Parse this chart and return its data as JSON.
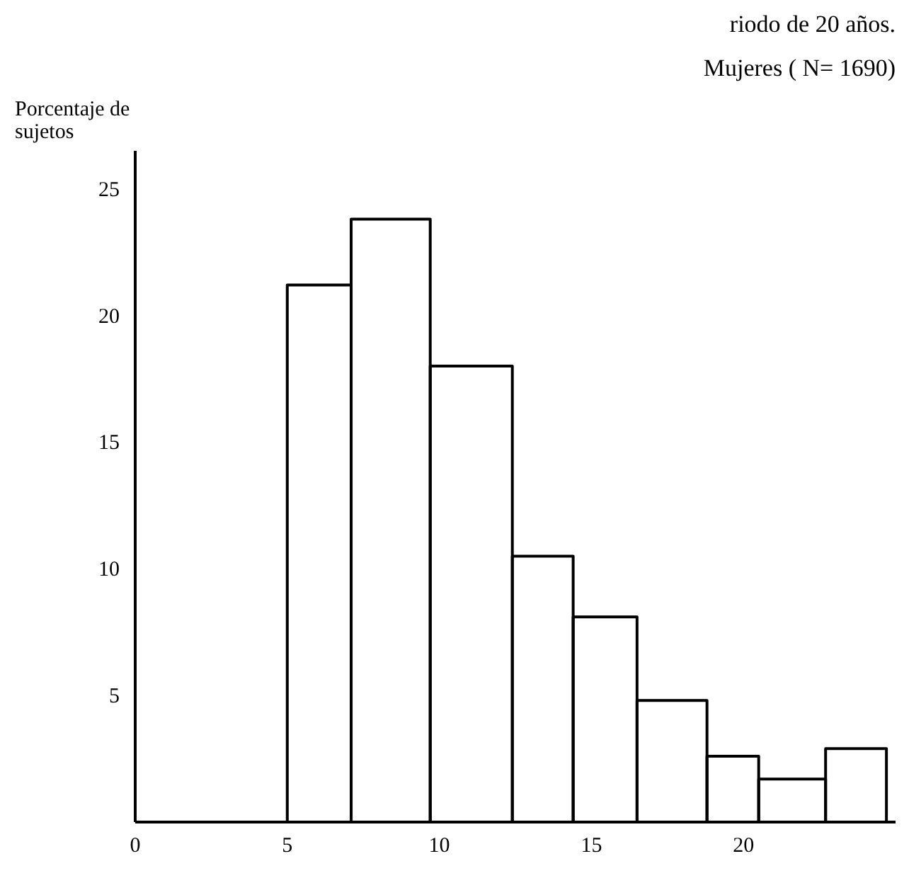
{
  "chart_data": {
    "type": "histogram",
    "title": "riodo de 20 años.",
    "subtitle": "Mujeres ( N= 1690)",
    "ylabel": "Porcentaje de sujetos",
    "bins": [
      5,
      7.1,
      9.7,
      12.4,
      14.4,
      16.5,
      18.8,
      20.5,
      22.7,
      24.7
    ],
    "values": [
      21.2,
      23.8,
      18.0,
      10.5,
      8.1,
      4.8,
      2.6,
      1.7,
      2.9
    ],
    "color": "#000000",
    "xlim": [
      0,
      25
    ],
    "xticks": [
      0,
      5,
      10,
      15,
      20
    ],
    "ylim": [
      0,
      26.5
    ],
    "yticks": [
      5,
      10,
      15,
      20,
      25
    ],
    "grid": false
  }
}
